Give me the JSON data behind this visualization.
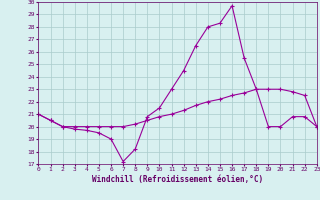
{
  "xlabel": "Windchill (Refroidissement éolien,°C)",
  "x": [
    0,
    1,
    2,
    3,
    4,
    5,
    6,
    7,
    8,
    9,
    10,
    11,
    12,
    13,
    14,
    15,
    16,
    17,
    18,
    19,
    20,
    21,
    22,
    23
  ],
  "line1": [
    21.0,
    20.5,
    20.0,
    19.8,
    19.7,
    19.5,
    19.0,
    17.2,
    18.2,
    20.8,
    21.5,
    23.0,
    24.5,
    26.5,
    28.0,
    28.3,
    29.7,
    25.5,
    23.0,
    23.0,
    23.0,
    22.8,
    22.5,
    20.0
  ],
  "line2": [
    21.0,
    20.5,
    20.0,
    20.0,
    20.0,
    20.0,
    20.0,
    20.0,
    20.2,
    20.5,
    20.8,
    21.0,
    21.3,
    21.7,
    22.0,
    22.2,
    22.5,
    22.7,
    23.0,
    20.0,
    20.0,
    20.8,
    20.8,
    20.0
  ],
  "line_color": "#990099",
  "bg_color": "#d8f0f0",
  "grid_color": "#aacccc",
  "text_color": "#660066",
  "ylim": [
    17,
    30
  ],
  "xlim": [
    0,
    23
  ],
  "yticks": [
    17,
    18,
    19,
    20,
    21,
    22,
    23,
    24,
    25,
    26,
    27,
    28,
    29,
    30
  ],
  "xticks": [
    0,
    1,
    2,
    3,
    4,
    5,
    6,
    7,
    8,
    9,
    10,
    11,
    12,
    13,
    14,
    15,
    16,
    17,
    18,
    19,
    20,
    21,
    22,
    23
  ]
}
